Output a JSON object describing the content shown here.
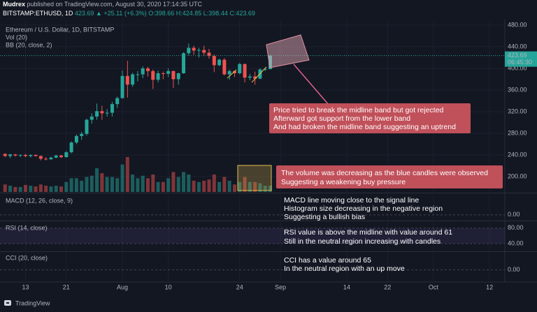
{
  "header": {
    "author": "Mudrex",
    "published": "published on TradingView.com, August 30, 2020 17:14:35 UTC"
  },
  "legend": {
    "symbol": "BITSTAMP:ETHUSD, 1D",
    "price": "423.69",
    "change": "▲ +25.11 (+6.3%)",
    "ohlc": "O:398.66 H:424.85 L:398.44 C:423.69"
  },
  "chart_data": [
    {
      "type": "candlestick",
      "title": "Ethereum / U.S. Dollar, 1D, BITSTAMP",
      "volume_title": "Vol (20)",
      "study_title": "BB (20, close, 2)",
      "x": [
        "2020-07-09",
        "2020-07-10",
        "2020-07-11",
        "2020-07-12",
        "2020-07-13",
        "2020-07-14",
        "2020-07-15",
        "2020-07-16",
        "2020-07-17",
        "2020-07-18",
        "2020-07-19",
        "2020-07-20",
        "2020-07-21",
        "2020-07-22",
        "2020-07-23",
        "2020-07-24",
        "2020-07-25",
        "2020-07-26",
        "2020-07-27",
        "2020-07-28",
        "2020-07-29",
        "2020-07-30",
        "2020-07-31",
        "2020-08-01",
        "2020-08-02",
        "2020-08-03",
        "2020-08-04",
        "2020-08-05",
        "2020-08-06",
        "2020-08-07",
        "2020-08-08",
        "2020-08-09",
        "2020-08-10",
        "2020-08-11",
        "2020-08-12",
        "2020-08-13",
        "2020-08-14",
        "2020-08-15",
        "2020-08-16",
        "2020-08-17",
        "2020-08-18",
        "2020-08-19",
        "2020-08-20",
        "2020-08-21",
        "2020-08-22",
        "2020-08-23",
        "2020-08-24",
        "2020-08-25",
        "2020-08-26",
        "2020-08-27",
        "2020-08-28",
        "2020-08-29",
        "2020-08-30"
      ],
      "open": [
        242,
        238,
        241,
        239,
        240,
        238,
        240,
        238,
        233,
        232,
        235,
        239,
        236,
        245,
        263,
        275,
        279,
        305,
        311,
        321,
        317,
        318,
        334,
        345,
        386,
        370,
        389,
        389,
        400,
        395,
        379,
        391,
        390,
        395,
        380,
        391,
        428,
        438,
        433,
        434,
        429,
        423,
        406,
        416,
        389,
        395,
        391,
        408,
        383,
        385,
        381,
        398,
        398.66
      ],
      "high": [
        243,
        242,
        242,
        241,
        242,
        241,
        241,
        239,
        236,
        237,
        240,
        240,
        247,
        265,
        278,
        283,
        307,
        317,
        335,
        331,
        325,
        338,
        348,
        396,
        414,
        392,
        395,
        404,
        403,
        398,
        396,
        394,
        400,
        396,
        392,
        430,
        446,
        442,
        438,
        442,
        436,
        426,
        418,
        419,
        398,
        396,
        410,
        409,
        390,
        394,
        400,
        402,
        424.85
      ],
      "low": [
        236,
        234,
        237,
        236,
        236,
        235,
        237,
        230,
        230,
        231,
        234,
        234,
        235,
        243,
        260,
        268,
        276,
        298,
        305,
        305,
        311,
        311,
        327,
        344,
        346,
        366,
        376,
        382,
        385,
        362,
        374,
        380,
        384,
        364,
        370,
        390,
        424,
        425,
        420,
        423,
        418,
        393,
        404,
        387,
        379,
        384,
        389,
        374,
        378,
        370,
        380,
        395,
        398.44
      ],
      "close": [
        238,
        241,
        239,
        240,
        238,
        240,
        238,
        233,
        232,
        235,
        239,
        236,
        245,
        263,
        275,
        279,
        305,
        311,
        321,
        317,
        318,
        334,
        345,
        386,
        370,
        389,
        389,
        400,
        395,
        379,
        391,
        390,
        395,
        380,
        391,
        428,
        438,
        433,
        434,
        429,
        423,
        406,
        416,
        389,
        395,
        391,
        408,
        383,
        385,
        381,
        398,
        398.66,
        423.69
      ],
      "volume": [
        30,
        25,
        20,
        20,
        28,
        25,
        22,
        30,
        25,
        22,
        25,
        22,
        40,
        55,
        55,
        45,
        60,
        65,
        95,
        75,
        60,
        60,
        55,
        110,
        140,
        70,
        55,
        65,
        55,
        70,
        40,
        40,
        55,
        80,
        60,
        80,
        70,
        45,
        40,
        45,
        50,
        70,
        40,
        60,
        45,
        30,
        40,
        60,
        40,
        40,
        35,
        25,
        25
      ],
      "up_color": "#26a69a",
      "down_color": "#ef5350",
      "ylim": [
        171.6,
        490.3
      ],
      "yticks": [
        {
          "value": 480,
          "label": "480.00"
        },
        {
          "value": 440,
          "label": "440.00"
        },
        {
          "value": 400,
          "label": "400.00"
        },
        {
          "value": 360,
          "label": "360.00"
        },
        {
          "value": 320,
          "label": "320.00"
        },
        {
          "value": 280,
          "label": "280.00"
        },
        {
          "value": 240,
          "label": "240.00"
        },
        {
          "value": 200,
          "label": "200.00"
        }
      ],
      "xlim": [
        "2020-07-08",
        "2020-10-15"
      ],
      "xticks": [
        {
          "value": "2020-07-13",
          "label": "13"
        },
        {
          "value": "2020-07-21",
          "label": "21"
        },
        {
          "value": "2020-08-01",
          "label": "Aug"
        },
        {
          "value": "2020-08-10",
          "label": "10"
        },
        {
          "value": "2020-08-24",
          "label": "24"
        },
        {
          "value": "2020-09-01",
          "label": "Sep"
        },
        {
          "value": "2020-09-14",
          "label": "14"
        },
        {
          "value": "2020-09-22",
          "label": "22"
        },
        {
          "value": "2020-10-01",
          "label": "Oct"
        },
        {
          "value": "2020-10-12",
          "label": "12"
        }
      ],
      "last_price_label": "423.69",
      "countdown": "06:45:30"
    },
    {
      "type": "pane",
      "title": "MACD (12, 26, close, 9)",
      "ylim": [
        -12,
        50
      ],
      "yticks": [
        {
          "value": 0,
          "label": "0.00"
        }
      ]
    },
    {
      "type": "pane",
      "title": "RSI (14, close)",
      "ylim": [
        20,
        96
      ],
      "yticks": [
        {
          "value": 80,
          "label": "80.00"
        },
        {
          "value": 40,
          "label": "40.00"
        }
      ]
    },
    {
      "type": "pane",
      "title": "CCI (20, close)",
      "ylim": [
        -250,
        400
      ],
      "yticks": [
        {
          "value": 0,
          "label": "0.00"
        }
      ]
    }
  ],
  "annotations": {
    "price": [
      "Price tried to break the midline band but got rejected",
      "Afterward got support from the lower band",
      "And had broken the midline band suggesting an uptrend"
    ],
    "volume": [
      "The volume was decreasing as the blue candles were observed",
      "Suggesting a weakening buy pressure"
    ],
    "macd": [
      "MACD line moving close to the signal line",
      "Histogram size decreasing in the negative region",
      "Suggesting a bullish bias"
    ],
    "rsi": [
      "RSI value is above the midline with value around 61",
      "Still in the neutral region increasing with candles"
    ],
    "cci": [
      "CCI has a value around 65",
      "In the neutral region with an up move"
    ]
  },
  "footer": {
    "brand": "TradingView"
  }
}
